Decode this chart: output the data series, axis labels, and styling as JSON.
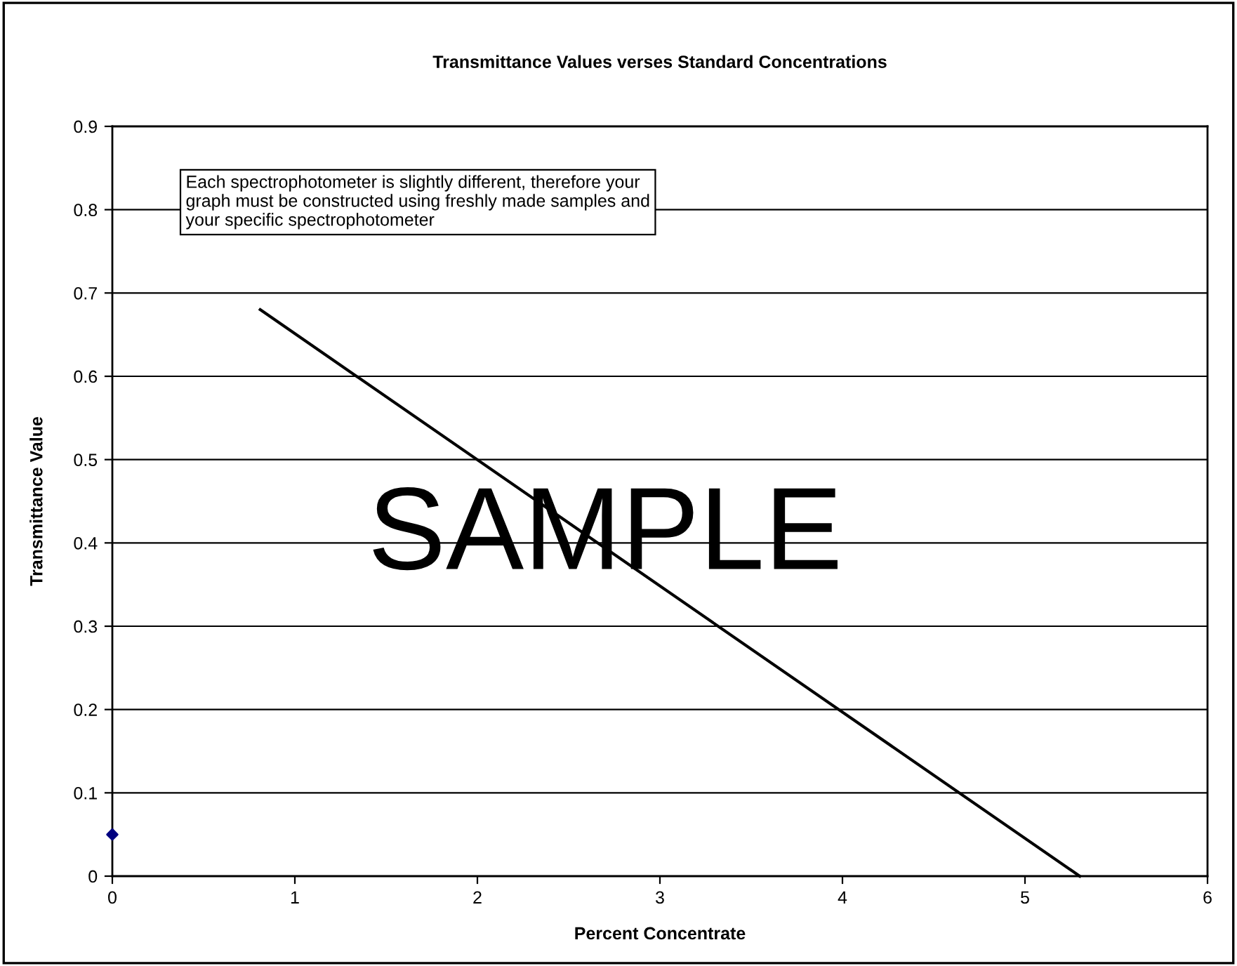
{
  "chart_data": {
    "type": "scatter",
    "title": "Transmittance Values verses Standard Concentrations",
    "xlabel": "Percent Concentrate",
    "ylabel": "Transmittance Value",
    "series": [
      {
        "color": "#000080",
        "marker": "diamond",
        "x": [
          0
        ],
        "values": [
          0.05
        ]
      },
      {
        "type": "line",
        "color": "#000000",
        "marker": "none",
        "line_style": "solid",
        "x": [
          0.81,
          5.3
        ],
        "values": [
          0.68,
          0
        ]
      }
    ],
    "xlim": [
      0,
      6
    ],
    "xticks": [
      0,
      1,
      2,
      3,
      4,
      5,
      6
    ],
    "ylim": [
      0,
      0.9
    ],
    "yticks": [
      0,
      0.1,
      0.2,
      0.3,
      0.4,
      0.5,
      0.6,
      0.7,
      0.8,
      0.9
    ],
    "grid": "y",
    "legend": false,
    "annotations": [
      "Each spectrophotometer is slightly different, therefore your graph must be constructed using freshly made samples and your specific spectrophotometer",
      "SAMPLE"
    ]
  }
}
